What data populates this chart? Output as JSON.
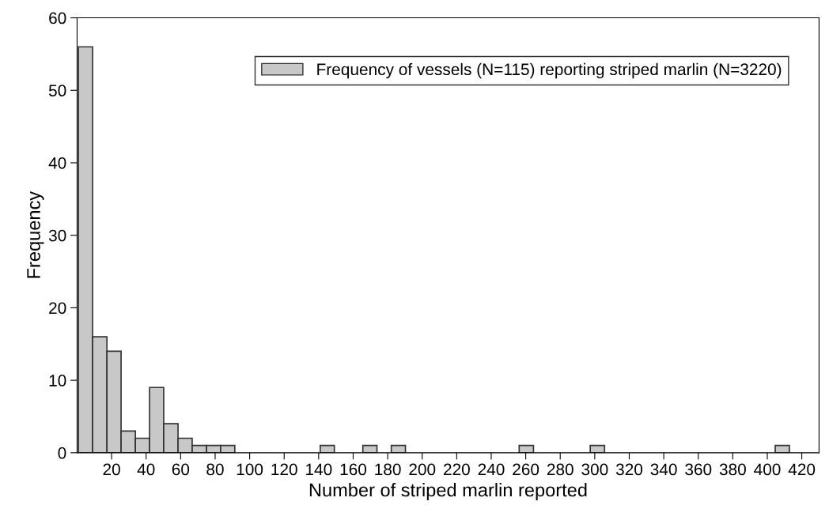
{
  "chart_data": {
    "type": "histogram",
    "xlabel": "Number of striped marlin reported",
    "ylabel": "Frequency",
    "bins": [
      0.8,
      9.0,
      17.3,
      25.5,
      33.8,
      42.0,
      50.2,
      58.5,
      66.7,
      75.0,
      83.2,
      91.4,
      99.7,
      107.9,
      116.2,
      124.4,
      132.6,
      140.9,
      149.1,
      157.4,
      165.6,
      173.8,
      182.1,
      190.3,
      198.6,
      206.8,
      215.0,
      223.3,
      231.5,
      239.8,
      248.0,
      256.2,
      264.5,
      272.7,
      281.0,
      289.2,
      297.4,
      305.7,
      313.9,
      322.2,
      330.4,
      338.6,
      346.9,
      355.1,
      363.4,
      371.6,
      379.8,
      388.1,
      396.3,
      404.6,
      412.8
    ],
    "series": [
      {
        "name": "Frequency of vessels (N=115) reporting striped marlin (N=3220)",
        "color": "#c8c8c8",
        "values": [
          56,
          16,
          14,
          3,
          2,
          9,
          4,
          2,
          1,
          1,
          1,
          0,
          0,
          0,
          0,
          0,
          0,
          1,
          0,
          0,
          1,
          0,
          1,
          0,
          0,
          0,
          0,
          0,
          0,
          0,
          0,
          1,
          0,
          0,
          0,
          0,
          1,
          0,
          0,
          0,
          0,
          0,
          0,
          0,
          0,
          0,
          0,
          0,
          0,
          1
        ]
      }
    ],
    "xlim": [
      0,
      430
    ],
    "ylim": [
      0,
      60
    ],
    "xticks": [
      20,
      40,
      60,
      80,
      100,
      120,
      140,
      160,
      180,
      200,
      220,
      240,
      260,
      280,
      300,
      320,
      340,
      360,
      380,
      400,
      420
    ],
    "yticks": [
      0,
      10,
      20,
      30,
      40,
      50,
      60
    ],
    "legend": "top right"
  }
}
